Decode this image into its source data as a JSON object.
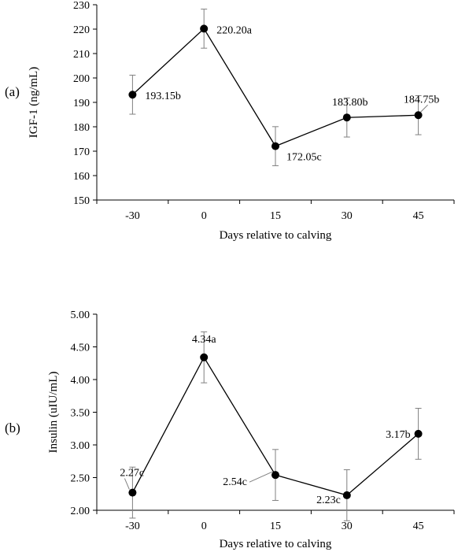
{
  "chart_data": [
    {
      "type": "line",
      "panel_label": "(a)",
      "categories": [
        "-30",
        "0",
        "15",
        "30",
        "45"
      ],
      "values": [
        193.15,
        220.2,
        172.05,
        183.8,
        184.75
      ],
      "error": [
        8,
        8,
        8,
        8,
        8
      ],
      "labels": [
        "193.15b",
        "220.20a",
        "172.05c",
        "183.80b",
        "184.75b"
      ],
      "xlabel": "Days relative to calving",
      "ylabel": "IGF-1 (ng/mL)",
      "ylim": [
        150,
        230
      ],
      "ystep": 10,
      "ydecimals": 0,
      "grid": false,
      "marker_color": "#000000",
      "line_color": "#000000",
      "error_color": "#808080"
    },
    {
      "type": "line",
      "panel_label": "(b)",
      "categories": [
        "-30",
        "0",
        "15",
        "30",
        "45"
      ],
      "values": [
        2.27,
        4.34,
        2.54,
        2.23,
        3.17
      ],
      "error": [
        0.39,
        0.39,
        0.39,
        0.39,
        0.39
      ],
      "labels": [
        "2.27c",
        "4.34a",
        "2.54c",
        "2.23c",
        "3.17b"
      ],
      "xlabel": "Days relative to calving",
      "ylabel": "Insulin (uIU/mL)",
      "ylim": [
        2.0,
        5.0
      ],
      "ystep": 0.5,
      "ydecimals": 2,
      "grid": false,
      "marker_color": "#000000",
      "line_color": "#000000",
      "error_color": "#808080"
    }
  ]
}
